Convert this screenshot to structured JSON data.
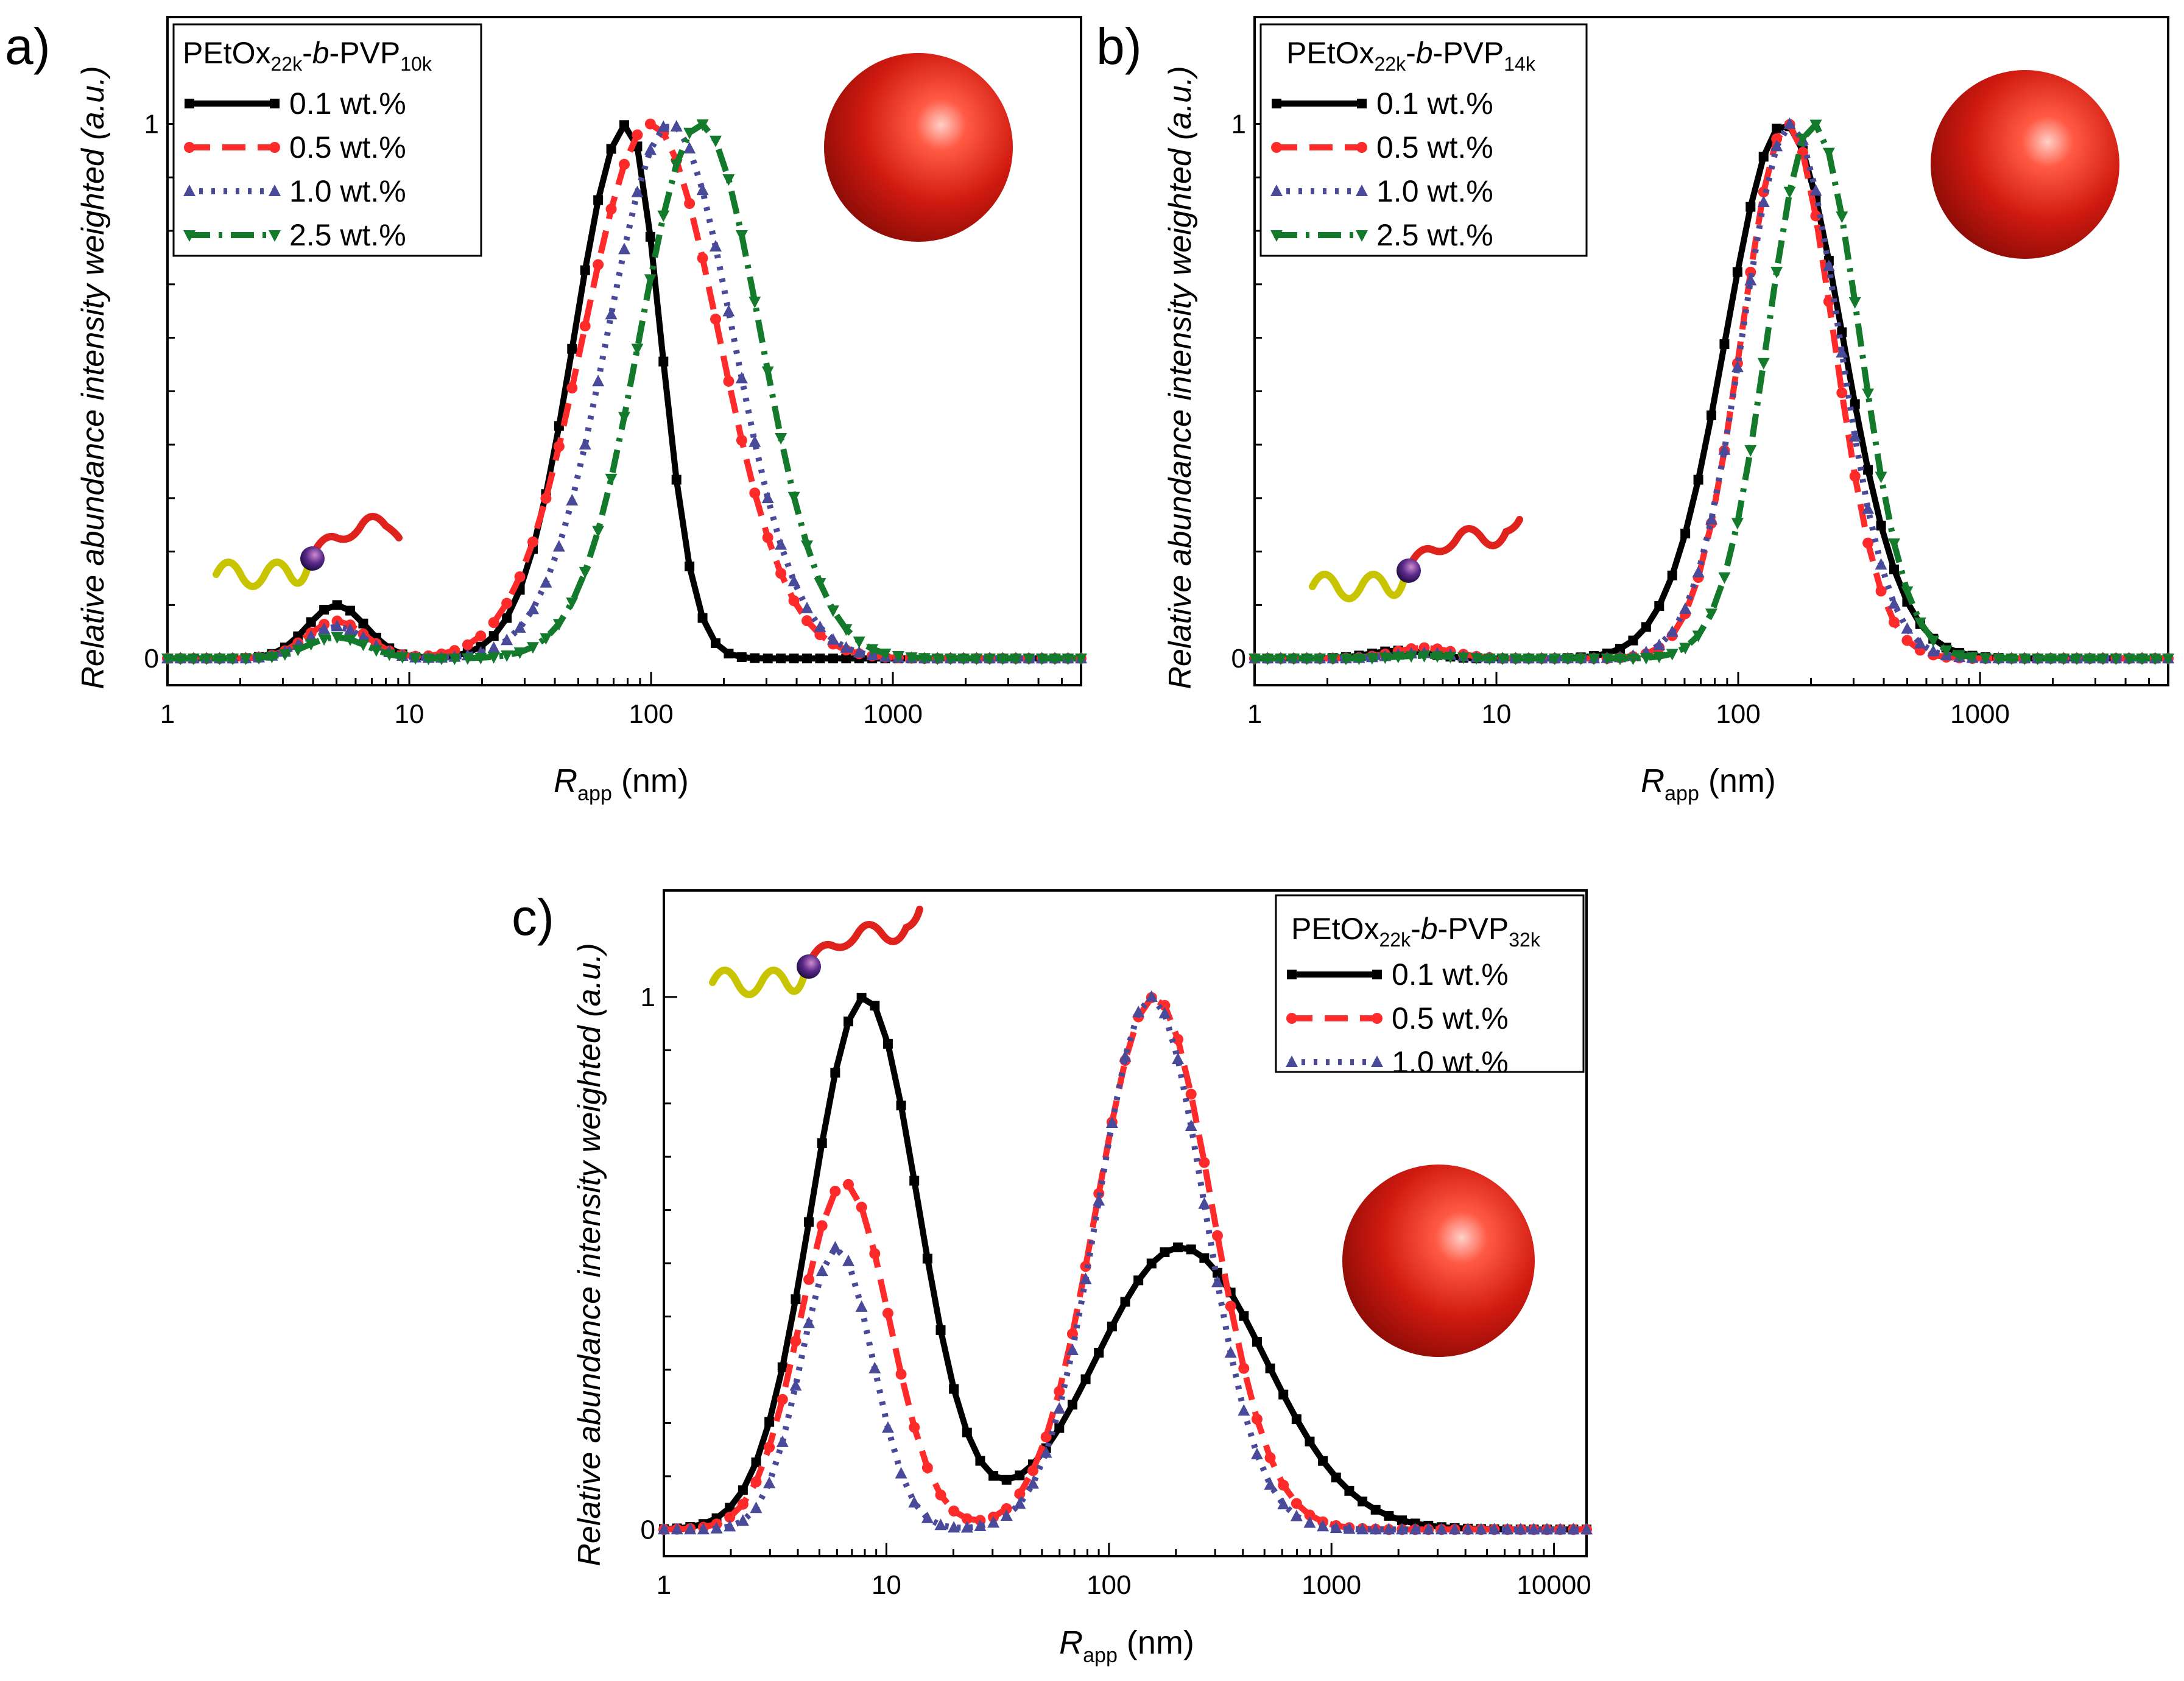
{
  "chart_data": [
    {
      "type": "line",
      "panel_label": "a)",
      "legend_title": {
        "main": "PEtOx",
        "sub1": "22k",
        "mid": "-",
        "ital": "b",
        "mid2": "-PVP",
        "sub2": "10k"
      },
      "ylabel": "Relative abundance intensity weighted (a.u.)",
      "xlabel": {
        "main": "R",
        "sub": "app",
        "rest": " (nm)"
      },
      "xscale": "log",
      "xlim": [
        1,
        6000
      ],
      "ylim": [
        -0.05,
        1.2
      ],
      "xticks": [
        {
          "v": 1,
          "label": "1"
        },
        {
          "v": 10,
          "label": "10"
        },
        {
          "v": 100,
          "label": "100"
        },
        {
          "v": 1000,
          "label": "1000"
        }
      ],
      "yticks": [
        {
          "v": 0,
          "label": "0"
        },
        {
          "v": 1,
          "label": "1"
        }
      ],
      "legend_position": "top-left",
      "series": [
        {
          "name": "0.1 wt.%",
          "color": "#000000",
          "dash": "solid",
          "marker": "square",
          "peaks": [
            {
              "c": 5,
              "w": 0.12,
              "h": 0.1
            },
            {
              "c": 80,
              "w": 0.22,
              "h": 1.0
            }
          ],
          "peak_shape": "skew-right-steep"
        },
        {
          "name": "0.5 wt.%",
          "color": "#ff2a2a",
          "dash": "dash",
          "marker": "circle",
          "peaks": [
            {
              "c": 5,
              "w": 0.12,
              "h": 0.07
            },
            {
              "c": 100,
              "w": 0.28,
              "h": 1.0
            }
          ]
        },
        {
          "name": "1.0 wt.%",
          "color": "#4a4a9a",
          "dash": "dot",
          "marker": "triangle",
          "peaks": [
            {
              "c": 5,
              "w": 0.12,
              "h": 0.06
            },
            {
              "c": 120,
              "w": 0.26,
              "h": 1.0
            }
          ]
        },
        {
          "name": "2.5 wt.%",
          "color": "#127a2a",
          "dash": "dashdot",
          "marker": "triangle-down",
          "peaks": [
            {
              "c": 5,
              "w": 0.12,
              "h": 0.04
            },
            {
              "c": 160,
              "w": 0.25,
              "h": 1.0
            }
          ]
        }
      ]
    },
    {
      "type": "line",
      "panel_label": "b)",
      "legend_title": {
        "main": "PEtOx",
        "sub1": "22k",
        "mid": "-",
        "ital": "b",
        "mid2": "-PVP",
        "sub2": "14k"
      },
      "ylabel": "Relative abundance intensity weighted (a.u.)",
      "xlabel": {
        "main": "R",
        "sub": "app",
        "rest": " (nm)"
      },
      "xscale": "log",
      "xlim": [
        1,
        6000
      ],
      "ylim": [
        -0.05,
        1.2
      ],
      "xticks": [
        {
          "v": 1,
          "label": "1"
        },
        {
          "v": 10,
          "label": "10"
        },
        {
          "v": 100,
          "label": "100"
        },
        {
          "v": 1000,
          "label": "1000"
        }
      ],
      "yticks": [
        {
          "v": 0,
          "label": "0"
        },
        {
          "v": 1,
          "label": "1"
        }
      ],
      "legend_position": "top-left",
      "series": [
        {
          "name": "0.1 wt.%",
          "color": "#000000",
          "dash": "solid",
          "marker": "square",
          "peaks": [
            {
              "c": 4,
              "w": 0.12,
              "h": 0.015
            },
            {
              "c": 155,
              "w": 0.24,
              "h": 1.0
            }
          ]
        },
        {
          "name": "0.5 wt.%",
          "color": "#ff2a2a",
          "dash": "dash",
          "marker": "circle",
          "peaks": [
            {
              "c": 5,
              "w": 0.12,
              "h": 0.02
            },
            {
              "c": 160,
              "w": 0.19,
              "h": 1.0
            }
          ]
        },
        {
          "name": "1.0 wt.%",
          "color": "#4a4a9a",
          "dash": "dot",
          "marker": "triangle",
          "peaks": [
            {
              "c": 5,
              "w": 0.12,
              "h": 0.01
            },
            {
              "c": 165,
              "w": 0.2,
              "h": 1.0
            }
          ]
        },
        {
          "name": "2.5 wt.%",
          "color": "#127a2a",
          "dash": "dashdot",
          "marker": "triangle-down",
          "peaks": [
            {
              "c": 5,
              "w": 0.12,
              "h": 0.005
            },
            {
              "c": 205,
              "w": 0.19,
              "h": 1.0
            }
          ]
        }
      ]
    },
    {
      "type": "line",
      "panel_label": "c)",
      "legend_title": {
        "main": "PEtOx",
        "sub1": "22k",
        "mid": "-",
        "ital": "b",
        "mid2": "-PVP",
        "sub2": "32k"
      },
      "ylabel": "Relative abundance intensity weighted (a.u.)",
      "xlabel": {
        "main": "R",
        "sub": "app",
        "rest": " (nm)"
      },
      "xscale": "log",
      "xlim": [
        1,
        14000
      ],
      "ylim": [
        -0.05,
        1.2
      ],
      "xticks": [
        {
          "v": 1,
          "label": "1"
        },
        {
          "v": 10,
          "label": "10"
        },
        {
          "v": 100,
          "label": "100"
        },
        {
          "v": 1000,
          "label": "1000"
        },
        {
          "v": 10000,
          "label": "10000"
        }
      ],
      "yticks": [
        {
          "v": 0,
          "label": "0"
        },
        {
          "v": 1,
          "label": "1"
        }
      ],
      "legend_position": "top-right",
      "series": [
        {
          "name": "0.1 wt.%",
          "color": "#000000",
          "dash": "solid",
          "marker": "square",
          "peaks": [
            {
              "c": 8,
              "w": 0.24,
              "h": 1.0
            },
            {
              "c": 210,
              "w": 0.38,
              "h": 0.53
            }
          ]
        },
        {
          "name": "0.5 wt.%",
          "color": "#ff2a2a",
          "dash": "dash",
          "marker": "circle",
          "peaks": [
            {
              "c": 6.5,
              "w": 0.2,
              "h": 0.65
            },
            {
              "c": 160,
              "w": 0.26,
              "h": 1.0
            }
          ]
        },
        {
          "name": "1.0 wt.%",
          "color": "#4a4a9a",
          "dash": "dot",
          "marker": "triangle",
          "peaks": [
            {
              "c": 6,
              "w": 0.16,
              "h": 0.53
            },
            {
              "c": 155,
              "w": 0.24,
              "h": 1.0
            }
          ]
        }
      ]
    }
  ],
  "colors": {
    "sphere": "#c8160c",
    "chain_yellow": "#c8c400",
    "chain_red": "#e0221c",
    "junction": "#3a2a7a"
  }
}
